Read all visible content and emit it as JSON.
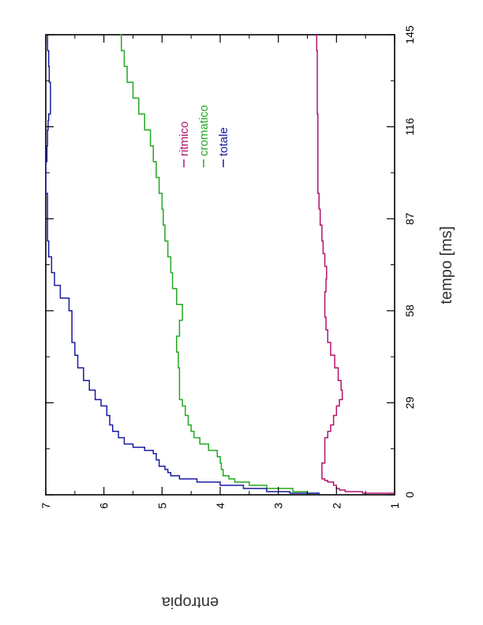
{
  "chart_data": {
    "type": "line",
    "title": "",
    "xlabel": "tempo [ms]",
    "ylabel": "entropia",
    "xlim": [
      0,
      145
    ],
    "ylim": [
      1,
      7
    ],
    "xticks": [
      0,
      29,
      58,
      87,
      116,
      145
    ],
    "yticks": [
      1,
      2,
      3,
      4,
      5,
      6,
      7
    ],
    "orientation": "rotated 90 degrees counter-clockwise",
    "grid": false,
    "legend_position": "top-right",
    "series": [
      {
        "name": "ritmico",
        "color": "#b0146e",
        "x": [
          0,
          0.5,
          1,
          1.5,
          2,
          3,
          4,
          4.5,
          5,
          6,
          8,
          10,
          12,
          15,
          18,
          20,
          22,
          25,
          28,
          30,
          33,
          36,
          40,
          44,
          48,
          52,
          56,
          60,
          64,
          68,
          72,
          76,
          80,
          85,
          90,
          95,
          100,
          110,
          120,
          130,
          140,
          145
        ],
        "values": [
          1.0,
          1.55,
          1.85,
          1.95,
          2.0,
          2.05,
          2.15,
          2.2,
          2.25,
          2.25,
          2.25,
          2.2,
          2.2,
          2.2,
          2.15,
          2.1,
          2.05,
          2.0,
          1.95,
          1.9,
          1.92,
          1.97,
          2.03,
          2.1,
          2.15,
          2.18,
          2.2,
          2.2,
          2.18,
          2.17,
          2.2,
          2.23,
          2.25,
          2.28,
          2.3,
          2.32,
          2.32,
          2.32,
          2.33,
          2.33,
          2.34,
          2.35
        ]
      },
      {
        "name": "cromatico",
        "color": "#22a822",
        "x": [
          0,
          0.5,
          1,
          2,
          3,
          4,
          5,
          6,
          8,
          10,
          12,
          14,
          16,
          18,
          20,
          22,
          25,
          28,
          30,
          35,
          40,
          45,
          50,
          55,
          58,
          60,
          65,
          70,
          75,
          80,
          85,
          90,
          95,
          100,
          105,
          110,
          115,
          120,
          125,
          130,
          135,
          140,
          145
        ],
        "values": [
          2.3,
          2.5,
          2.75,
          3.2,
          3.5,
          3.75,
          3.85,
          3.95,
          3.98,
          4.0,
          4.05,
          4.2,
          4.35,
          4.45,
          4.5,
          4.55,
          4.6,
          4.65,
          4.7,
          4.7,
          4.72,
          4.75,
          4.7,
          4.65,
          4.65,
          4.75,
          4.82,
          4.85,
          4.9,
          4.95,
          4.98,
          5.0,
          5.05,
          5.1,
          5.15,
          5.2,
          5.3,
          5.4,
          5.5,
          5.6,
          5.65,
          5.7,
          5.72
        ]
      },
      {
        "name": "totale",
        "color": "#1a1aa0",
        "x": [
          0,
          0.5,
          1,
          2,
          3,
          4,
          5,
          6,
          7,
          8,
          9,
          10,
          11,
          12,
          13,
          14,
          15,
          16,
          18,
          20,
          22,
          25,
          28,
          30,
          33,
          36,
          40,
          44,
          48,
          52,
          55,
          58,
          62,
          66,
          70,
          75,
          80,
          85,
          90,
          95,
          100,
          105,
          110,
          115,
          118,
          120,
          125,
          130,
          135,
          140,
          145
        ],
        "values": [
          2.3,
          2.8,
          3.2,
          3.6,
          4.0,
          4.4,
          4.7,
          4.85,
          4.9,
          4.95,
          5.05,
          5.05,
          5.1,
          5.1,
          5.15,
          5.3,
          5.5,
          5.65,
          5.75,
          5.85,
          5.9,
          5.95,
          6.05,
          6.15,
          6.25,
          6.35,
          6.45,
          6.5,
          6.55,
          6.55,
          6.55,
          6.6,
          6.75,
          6.85,
          6.9,
          6.95,
          6.97,
          6.97,
          6.97,
          7.0,
          7.0,
          6.98,
          6.97,
          6.96,
          6.95,
          6.92,
          6.92,
          6.94,
          6.95,
          6.97,
          6.97
        ]
      }
    ]
  }
}
